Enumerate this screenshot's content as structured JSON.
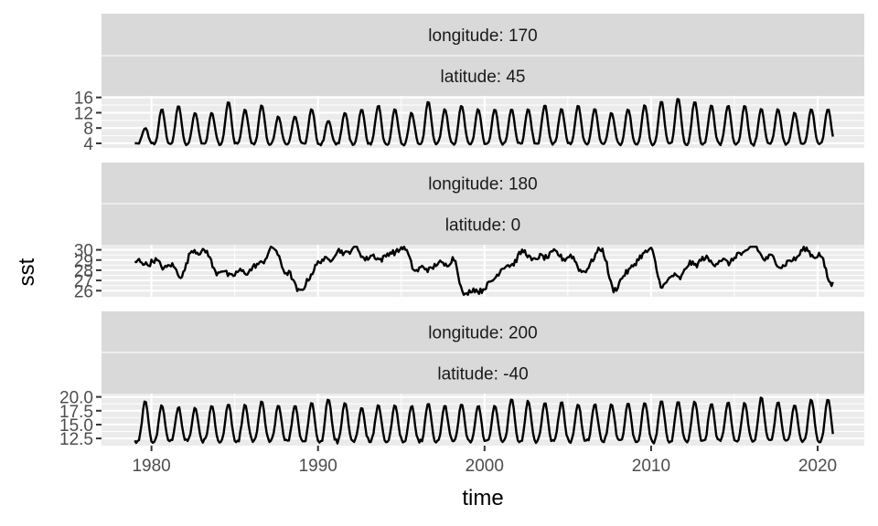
{
  "chart_data": {
    "type": "line",
    "facet_layout": "stacked panels, shared x axis",
    "xlabel": "time",
    "ylabel": "sst",
    "xlim": [
      1977,
      2022.8
    ],
    "x_ticks": [
      1980,
      1990,
      2000,
      2010,
      2020
    ],
    "x_tick_labels": [
      "1980",
      "1990",
      "2000",
      "2010",
      "2020"
    ],
    "grid": true,
    "panels": [
      {
        "strip": [
          "longitude: 170",
          "latitude: 45"
        ],
        "ylim": [
          2.8,
          16.4
        ],
        "y_ticks": [
          4,
          8,
          12,
          16
        ],
        "y_tick_labels": [
          "4",
          "8",
          "12",
          "16"
        ],
        "series": {
          "start": 1979.0,
          "end": 2020.9,
          "pattern": "seasonal",
          "min": 3.5,
          "max": 15.5,
          "peaks": [
            8,
            13,
            14,
            12,
            12,
            15,
            13,
            14,
            11,
            11,
            13,
            10,
            12,
            13,
            14,
            13,
            12,
            15,
            13,
            14,
            13,
            13,
            13,
            13,
            14,
            13,
            14,
            13,
            12,
            13,
            14,
            15,
            16,
            15,
            14,
            14,
            14,
            13,
            13,
            12,
            13
          ]
        }
      },
      {
        "strip": [
          "longitude: 180",
          "latitude: 0"
        ],
        "ylim": [
          25.4,
          30.5
        ],
        "y_ticks": [
          26,
          27,
          28,
          29,
          30
        ],
        "y_tick_labels": [
          "26",
          "27",
          "28",
          "29",
          "30"
        ],
        "series": {
          "start": 1979.0,
          "end": 2020.9,
          "pattern": "enso",
          "min": 25.6,
          "max": 30.3,
          "knots": [
            [
              1979,
              28.7
            ],
            [
              1980,
              28.8
            ],
            [
              1981,
              28.4
            ],
            [
              1981.8,
              27.7
            ],
            [
              1982.6,
              30.1
            ],
            [
              1983.3,
              29.6
            ],
            [
              1984,
              27.8
            ],
            [
              1985,
              27.6
            ],
            [
              1986,
              28.1
            ],
            [
              1987.4,
              30.0
            ],
            [
              1988.2,
              27.5
            ],
            [
              1989,
              26.0
            ],
            [
              1990,
              28.7
            ],
            [
              1991.3,
              29.7
            ],
            [
              1992.2,
              30.1
            ],
            [
              1993,
              29.2
            ],
            [
              1994,
              29.3
            ],
            [
              1995,
              30.2
            ],
            [
              1996,
              28.0
            ],
            [
              1997.3,
              28.5
            ],
            [
              1998.1,
              29.0
            ],
            [
              1998.8,
              25.7
            ],
            [
              2000.1,
              26.3
            ],
            [
              2001,
              28.1
            ],
            [
              2002.5,
              29.7
            ],
            [
              2003,
              29.0
            ],
            [
              2004,
              29.6
            ],
            [
              2005,
              29.3
            ],
            [
              2006.1,
              27.9
            ],
            [
              2006.9,
              30.2
            ],
            [
              2007.8,
              26.3
            ],
            [
              2009,
              28.6
            ],
            [
              2009.9,
              30.2
            ],
            [
              2010.6,
              26.7
            ],
            [
              2011.6,
              27.4
            ],
            [
              2012.5,
              28.6
            ],
            [
              2013,
              29.0
            ],
            [
              2014.4,
              28.8
            ],
            [
              2015.3,
              29.4
            ],
            [
              2016,
              30.3
            ],
            [
              2017,
              29.2
            ],
            [
              2018,
              28.5
            ],
            [
              2019.2,
              29.9
            ],
            [
              2020,
              29.5
            ],
            [
              2020.9,
              26.8
            ]
          ]
        }
      },
      {
        "strip": [
          "longitude: 200",
          "latitude: -40"
        ],
        "ylim": [
          11.2,
          20.6
        ],
        "y_ticks": [
          12.5,
          15.0,
          17.5,
          20.0
        ],
        "y_tick_labels": [
          "12.5",
          "15.0",
          "17.5",
          "20.0"
        ],
        "series": {
          "start": 1979.0,
          "end": 2020.9,
          "pattern": "seasonal",
          "min": 11.7,
          "max": 19.9,
          "peaks": [
            19.2,
            18.5,
            18.2,
            18.0,
            18.4,
            18.8,
            18.6,
            19.3,
            18.6,
            18.4,
            19.0,
            19.7,
            18.9,
            18.0,
            18.5,
            18.6,
            18.4,
            18.8,
            18.4,
            18.7,
            18.5,
            18.4,
            19.6,
            19.3,
            18.9,
            19.1,
            18.8,
            18.7,
            18.8,
            18.9,
            19.0,
            19.4,
            19.2,
            19.2,
            18.8,
            19.1,
            18.9,
            19.9,
            19.1,
            18.6,
            19.6,
            19.5
          ]
        }
      }
    ]
  }
}
